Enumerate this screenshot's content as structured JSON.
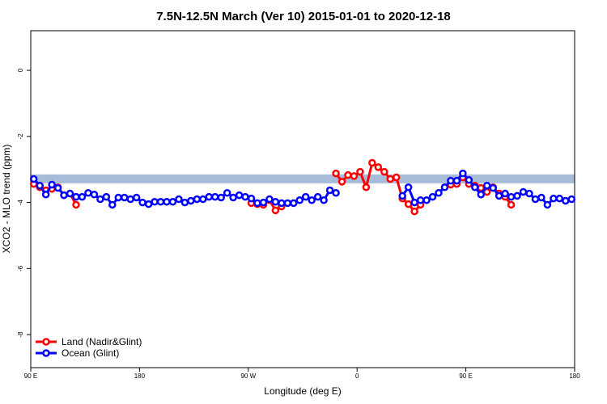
{
  "chart_data": {
    "type": "line",
    "title": "7.5N-12.5N March (Ver 10)   2015-01-01 to 2020-12-18",
    "x_label": "Longitude (deg E)",
    "y_label": "XCO2 - MLO trend (ppm)",
    "xlim": [
      90,
      540
    ],
    "ylim": [
      -9,
      1.2
    ],
    "xticks": [
      {
        "value": 90,
        "label": "90 E"
      },
      180,
      {
        "value": 270,
        "label": "90 W"
      },
      {
        "value": 360,
        "label": "0"
      },
      {
        "value": 450,
        "label": "90 E"
      },
      {
        "value": 540,
        "label": "180"
      }
    ],
    "yticks": [
      0,
      -2,
      -4,
      -6,
      -8
    ],
    "band": {
      "ymin": -3.42,
      "ymax": -3.15,
      "color": "#a7bcd9"
    },
    "legend": "bottom-left",
    "series": [
      {
        "name": "Land (Nadir&Glint)",
        "color": "#ff0000",
        "x": [
          92.5,
          97.5,
          102.5,
          107.5,
          112.5,
          117.5,
          122.5,
          127.5,
          200,
          272.5,
          277.5,
          282.5,
          287.5,
          292.5,
          297.5,
          320,
          342.5,
          347.5,
          352.5,
          357.5,
          362.5,
          367.5,
          372.5,
          377.5,
          382.5,
          387.5,
          392.5,
          397.5,
          402.5,
          407.5,
          412.5,
          425,
          437.5,
          442.5,
          447.5,
          452.5,
          457.5,
          462.5,
          467.5,
          472.5,
          477.5,
          482.5,
          487.5
        ],
        "values": [
          -3.44,
          -3.54,
          -3.63,
          -3.59,
          -3.54,
          -3.78,
          -3.73,
          -4.07,
          null,
          -4.02,
          -4.05,
          -4.07,
          -3.93,
          -4.24,
          -4.12,
          null,
          -3.12,
          -3.37,
          -3.17,
          -3.2,
          -3.07,
          -3.54,
          -2.8,
          -2.93,
          -3.07,
          -3.29,
          -3.24,
          -3.88,
          -4.05,
          -4.27,
          -4.07,
          null,
          -3.46,
          -3.44,
          -3.24,
          -3.44,
          -3.49,
          -3.56,
          -3.68,
          -3.54,
          -3.73,
          -3.83,
          -4.07
        ]
      },
      {
        "name": "Ocean (Glint)",
        "color": "#0000ff",
        "x": [
          92.5,
          97.5,
          102.5,
          107.5,
          112.5,
          117.5,
          122.5,
          127.5,
          132.5,
          137.5,
          142.5,
          147.5,
          152.5,
          157.5,
          162.5,
          167.5,
          172.5,
          177.5,
          182.5,
          187.5,
          192.5,
          197.5,
          202.5,
          207.5,
          212.5,
          217.5,
          222.5,
          227.5,
          232.5,
          237.5,
          242.5,
          247.5,
          252.5,
          257.5,
          262.5,
          267.5,
          272.5,
          277.5,
          282.5,
          287.5,
          292.5,
          297.5,
          302.5,
          307.5,
          312.5,
          317.5,
          322.5,
          327.5,
          332.5,
          337.5,
          342.5,
          370,
          397.5,
          402.5,
          407.5,
          412.5,
          417.5,
          422.5,
          427.5,
          432.5,
          437.5,
          442.5,
          447.5,
          452.5,
          457.5,
          462.5,
          467.5,
          472.5,
          477.5,
          482.5,
          487.5,
          492.5,
          497.5,
          502.5,
          507.5,
          512.5,
          517.5,
          522.5,
          527.5,
          532.5,
          537.5
        ],
        "values": [
          -3.29,
          -3.49,
          -3.76,
          -3.46,
          -3.56,
          -3.78,
          -3.73,
          -3.83,
          -3.83,
          -3.71,
          -3.76,
          -3.9,
          -3.83,
          -4.07,
          -3.85,
          -3.85,
          -3.9,
          -3.85,
          -4.0,
          -4.05,
          -3.98,
          -3.98,
          -3.98,
          -3.98,
          -3.9,
          -4.0,
          -3.95,
          -3.9,
          -3.9,
          -3.83,
          -3.83,
          -3.85,
          -3.71,
          -3.85,
          -3.78,
          -3.83,
          -3.88,
          -4.02,
          -4.0,
          -3.9,
          -3.98,
          -4.02,
          -4.02,
          -4.02,
          -3.93,
          -3.83,
          -3.93,
          -3.83,
          -3.93,
          -3.63,
          -3.71,
          null,
          -3.8,
          -3.54,
          -4.0,
          -3.93,
          -3.93,
          -3.83,
          -3.71,
          -3.54,
          -3.34,
          -3.34,
          -3.12,
          -3.32,
          -3.54,
          -3.76,
          -3.49,
          -3.56,
          -3.8,
          -3.73,
          -3.83,
          -3.8,
          -3.68,
          -3.73,
          -3.9,
          -3.85,
          -4.07,
          -3.88,
          -3.88,
          -3.95,
          -3.9
        ]
      }
    ]
  }
}
